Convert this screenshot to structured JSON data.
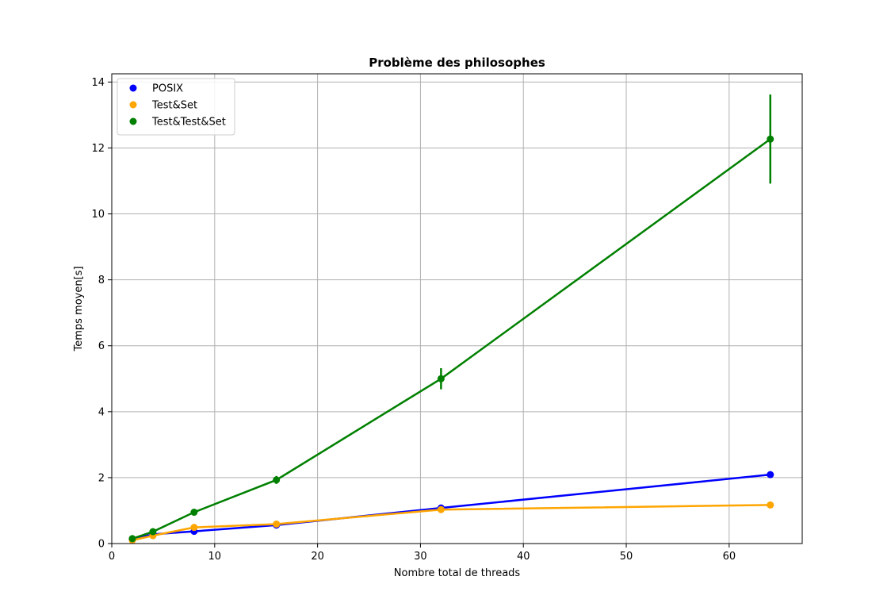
{
  "chart_data": {
    "type": "line",
    "title": "Problème des philosophes",
    "xlabel": "Nombre total de threads",
    "ylabel": "Temps moyen[s]",
    "xlim": [
      0,
      67.1
    ],
    "ylim": [
      0,
      14.25
    ],
    "xticks": [
      0,
      10,
      20,
      30,
      40,
      50,
      60
    ],
    "yticks": [
      0,
      2,
      4,
      6,
      8,
      10,
      12,
      14
    ],
    "grid": true,
    "legend_position": "top-left",
    "series": [
      {
        "name": "POSIX",
        "color": "#0000ff",
        "x": [
          2,
          4,
          8,
          16,
          32,
          64
        ],
        "y": [
          0.13,
          0.28,
          0.37,
          0.56,
          1.08,
          2.09
        ],
        "err": [
          0,
          0,
          0,
          0,
          0,
          0
        ]
      },
      {
        "name": "Test&Set",
        "color": "#ffa500",
        "x": [
          2,
          4,
          8,
          16,
          32,
          64
        ],
        "y": [
          0.1,
          0.24,
          0.49,
          0.59,
          1.03,
          1.17
        ],
        "err": [
          0,
          0,
          0,
          0,
          0,
          0
        ]
      },
      {
        "name": "Test&Test&Set",
        "color": "#008000",
        "x": [
          2,
          4,
          8,
          16,
          32,
          64
        ],
        "y": [
          0.15,
          0.36,
          0.95,
          1.93,
          5.0,
          12.27
        ],
        "err": [
          0.02,
          0.03,
          0.05,
          0.12,
          0.32,
          1.35
        ]
      }
    ]
  }
}
